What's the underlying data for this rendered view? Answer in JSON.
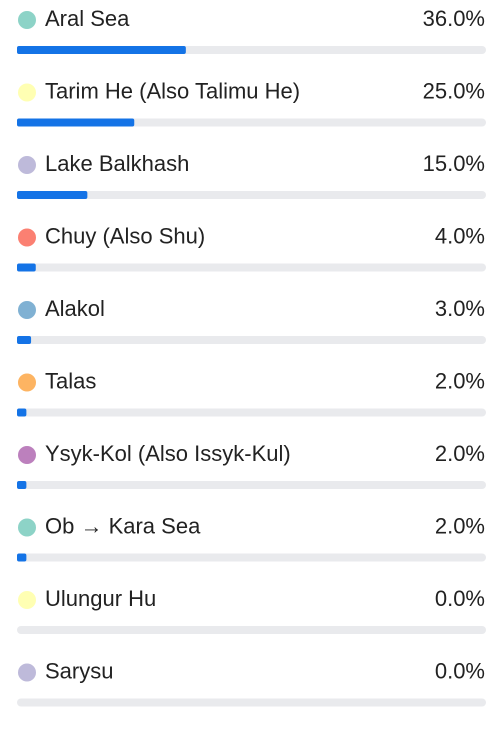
{
  "chart_data": {
    "type": "progress",
    "categories": [
      "Aral Sea",
      "Tarim He (Also Talimu He)",
      "Lake Balkhash",
      "Chuy (Also Shu)",
      "Alakol",
      "Talas",
      "Ysyk-Kol (Also Issyk-Kul)",
      "Ob → Kara Sea",
      "Ulungur Hu",
      "Sarysu"
    ],
    "values": [
      36,
      25,
      15,
      4,
      3,
      2,
      2,
      2,
      0,
      0
    ],
    "value_labels": [
      "36.0%",
      "25.0%",
      "15.0%",
      "4.0%",
      "3.0%",
      "2.0%",
      "2.0%",
      "2.0%",
      "0.0%",
      "0.0%"
    ],
    "colors": [
      "#8dd3c7",
      "#ffffb3",
      "#bebada",
      "#fb8072",
      "#80b1d3",
      "#fdb462",
      "#bc80bd",
      "#8dd3c7",
      "#ffffb3",
      "#bebada"
    ],
    "color": "#1473e6",
    "xlim": [
      0,
      100
    ]
  }
}
